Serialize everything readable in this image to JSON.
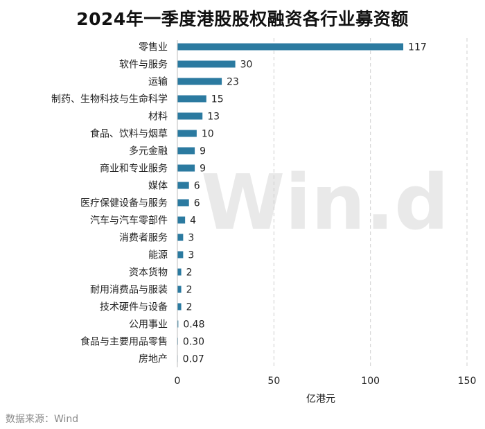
{
  "chart_data": {
    "type": "bar",
    "orientation": "horizontal",
    "title": "2024年一季度港股股权融资各行业募资额",
    "xlabel": "亿港元",
    "ylabel": "",
    "xlim": [
      0,
      150
    ],
    "xticks": [
      "0",
      "50",
      "100",
      "150"
    ],
    "grid": true,
    "bar_color": "#2b7aa0",
    "categories": [
      "零售业",
      "软件与服务",
      "运输",
      "制药、生物科技与生命科学",
      "材料",
      "食品、饮料与烟草",
      "多元金融",
      "商业和专业服务",
      "媒体",
      "医疗保健设备与服务",
      "汽车与汽车零部件",
      "消费者服务",
      "能源",
      "资本货物",
      "耐用消费品与服装",
      "技术硬件与设备",
      "公用事业",
      "食品与主要用品零售",
      "房地产"
    ],
    "values": [
      117,
      30,
      23,
      15,
      13,
      10,
      9,
      9,
      6,
      6,
      4,
      3,
      3,
      2,
      2,
      2,
      0.48,
      0.3,
      0.07
    ],
    "value_labels": [
      "117",
      "30",
      "23",
      "15",
      "13",
      "10",
      "9",
      "9",
      "6",
      "6",
      "4",
      "3",
      "3",
      "2",
      "2",
      "2",
      "0.48",
      "0.30",
      "0.07"
    ]
  },
  "source": "数据来源：Wind",
  "watermark": "Win.d"
}
